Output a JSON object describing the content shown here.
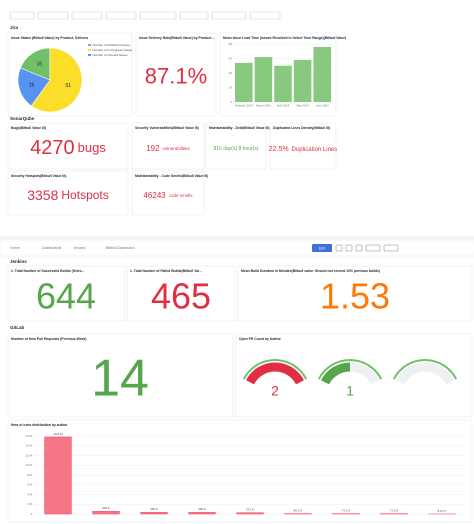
{
  "dashboard1": {
    "sections": [
      "Jira",
      "SonarQube"
    ],
    "pie": {
      "title": "Issue Status (Bitbull Value) by Product, Delivers",
      "legend": [
        "Number of Published Issues",
        "Number of In Progress Issues",
        "Number of Opened Issues"
      ],
      "values": [
        16,
        51,
        18
      ],
      "colors": [
        "#73bf69",
        "#fade2a",
        "#5794f2"
      ]
    },
    "rate": {
      "title": "Issue Delivery Rate(Bitbull Value) by Product ...",
      "value": "87.1%"
    },
    "leadtime": {
      "title": "Mean Issue Lead Time (Issues Resolved in Select Time Range)(Bitbull Value)",
      "categories": [
        "February 2024",
        "March 2024",
        "April 2024",
        "May 2024",
        "June 2024"
      ],
      "values": [
        27,
        31,
        25,
        29,
        38
      ],
      "color": "#73bf69",
      "ylim": [
        0,
        40
      ],
      "yticks": [
        0,
        10,
        20,
        30,
        40
      ]
    },
    "stats": [
      {
        "title": "Bugs(Bitbull Value III)",
        "value": 4270,
        "unit": "bugs"
      },
      {
        "title": "Security Vulnerabilities(Bitbull Value III)",
        "value": 192,
        "unit": "vulnerabilities"
      },
      {
        "title": "Maintainability - Debt(Bitbull Value III)",
        "value": "816 day(s) 8 hour(s)"
      },
      {
        "title": "Duplicated Lines Density(Bitbull III)",
        "value": "22.5%",
        "unit": "Duplication Lines"
      },
      {
        "title": "Security Hotspots(Bitbull Value III)",
        "value": 3358,
        "unit": "Hotspots"
      },
      {
        "title": "Maintainability - Code Smells(Bitbull Value III)",
        "value": 46243,
        "unit": "code smells"
      }
    ]
  },
  "dashboard2": {
    "breadcrumb": [
      "Home",
      "Dashboards",
      "tenant1",
      "Bitbull-Dashboard"
    ],
    "edit": "Edit",
    "sections": [
      "Jenkins",
      "GitLab"
    ],
    "jenkins": [
      {
        "title": "1. Total Number of Successful Builds (Selec...",
        "value": 644,
        "color": "#56a64b"
      },
      {
        "title": "1. Total Number of Failed Builds(Bitbull Val...",
        "value": 465,
        "color": "#e02f44"
      },
      {
        "title": "Mean Build Duration in Minutes(Bitbull value: Should not exceed 10% previous builds)",
        "value": 1.53,
        "color": "#ff780a"
      }
    ],
    "prs": {
      "title": "Number of New Pull Requests (Previous Week)",
      "value": 14
    },
    "open_pr": {
      "title": "Open PR Count by Author",
      "values": [
        2,
        1
      ],
      "colors": [
        "#e02f44",
        "#56a64b"
      ]
    },
    "lines": {
      "title": "Nms of code distribution by author",
      "values": [
        15800000,
        549000,
        338000,
        328000,
        271000,
        86300,
        74200,
        71500,
        8670
      ],
      "value_labels": [
        "15.8 M",
        "549 K",
        "338 K",
        "328 K",
        "271 K",
        "86.3 K",
        "74.2 K",
        "71.5 K",
        "8.67 K"
      ],
      "ylim": [
        0,
        16000000
      ],
      "yticks": [
        {
          "value": 0,
          "label": "0"
        },
        {
          "value": 2000000,
          "label": "2 M"
        },
        {
          "value": 4000000,
          "label": "4 M"
        },
        {
          "value": 6000000,
          "label": "6 M"
        },
        {
          "value": 8000000,
          "label": "8 M"
        },
        {
          "value": 10000000,
          "label": "10 M"
        },
        {
          "value": 12000000,
          "label": "12 M"
        },
        {
          "value": 14000000,
          "label": "14 M"
        },
        {
          "value": 16000000,
          "label": "16 M"
        }
      ],
      "color": "#f2495c"
    }
  }
}
